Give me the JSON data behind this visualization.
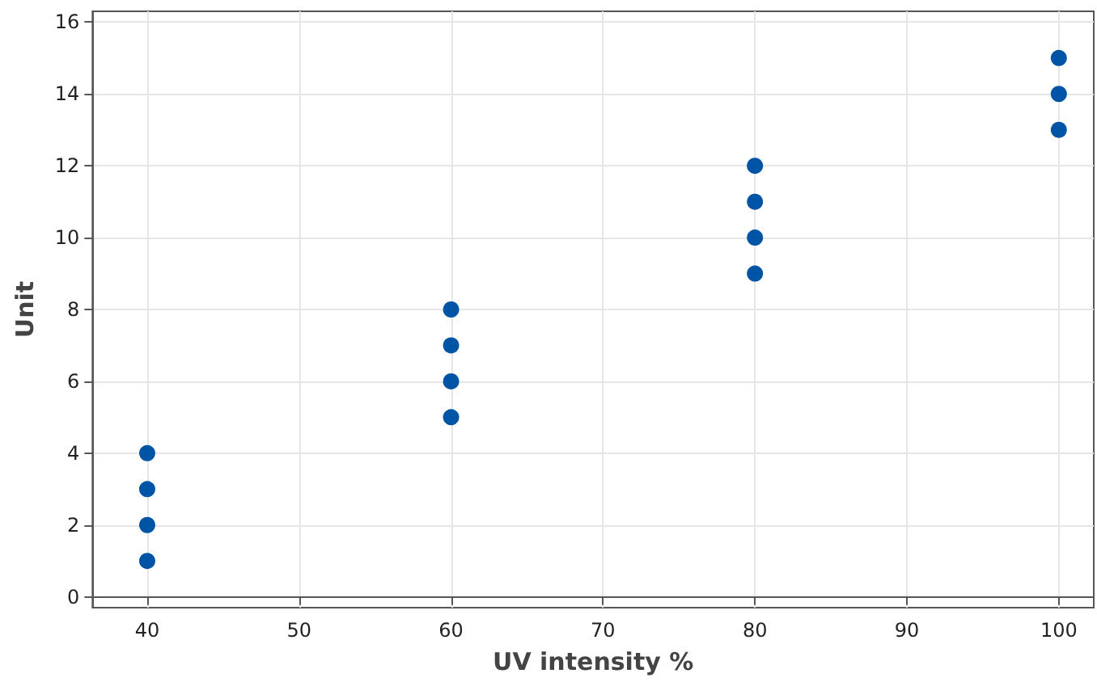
{
  "chart_data": {
    "type": "scatter",
    "xlabel": "UV intensity %",
    "ylabel": "Unit",
    "x": [
      40,
      40,
      40,
      40,
      60,
      60,
      60,
      60,
      80,
      80,
      80,
      80,
      100,
      100,
      100
    ],
    "values": [
      1,
      2,
      3,
      4,
      5,
      6,
      7,
      8,
      9,
      10,
      11,
      12,
      13,
      14,
      15
    ],
    "color": "#0054a6",
    "marker": "circle",
    "xlim": [
      36.4,
      102.3
    ],
    "xticks": [
      40,
      50,
      60,
      70,
      80,
      90,
      100
    ],
    "ylim": [
      -0.3,
      16.3
    ],
    "yticks": [
      0,
      2,
      4,
      6,
      8,
      10,
      12,
      14,
      16
    ],
    "grid": true
  }
}
